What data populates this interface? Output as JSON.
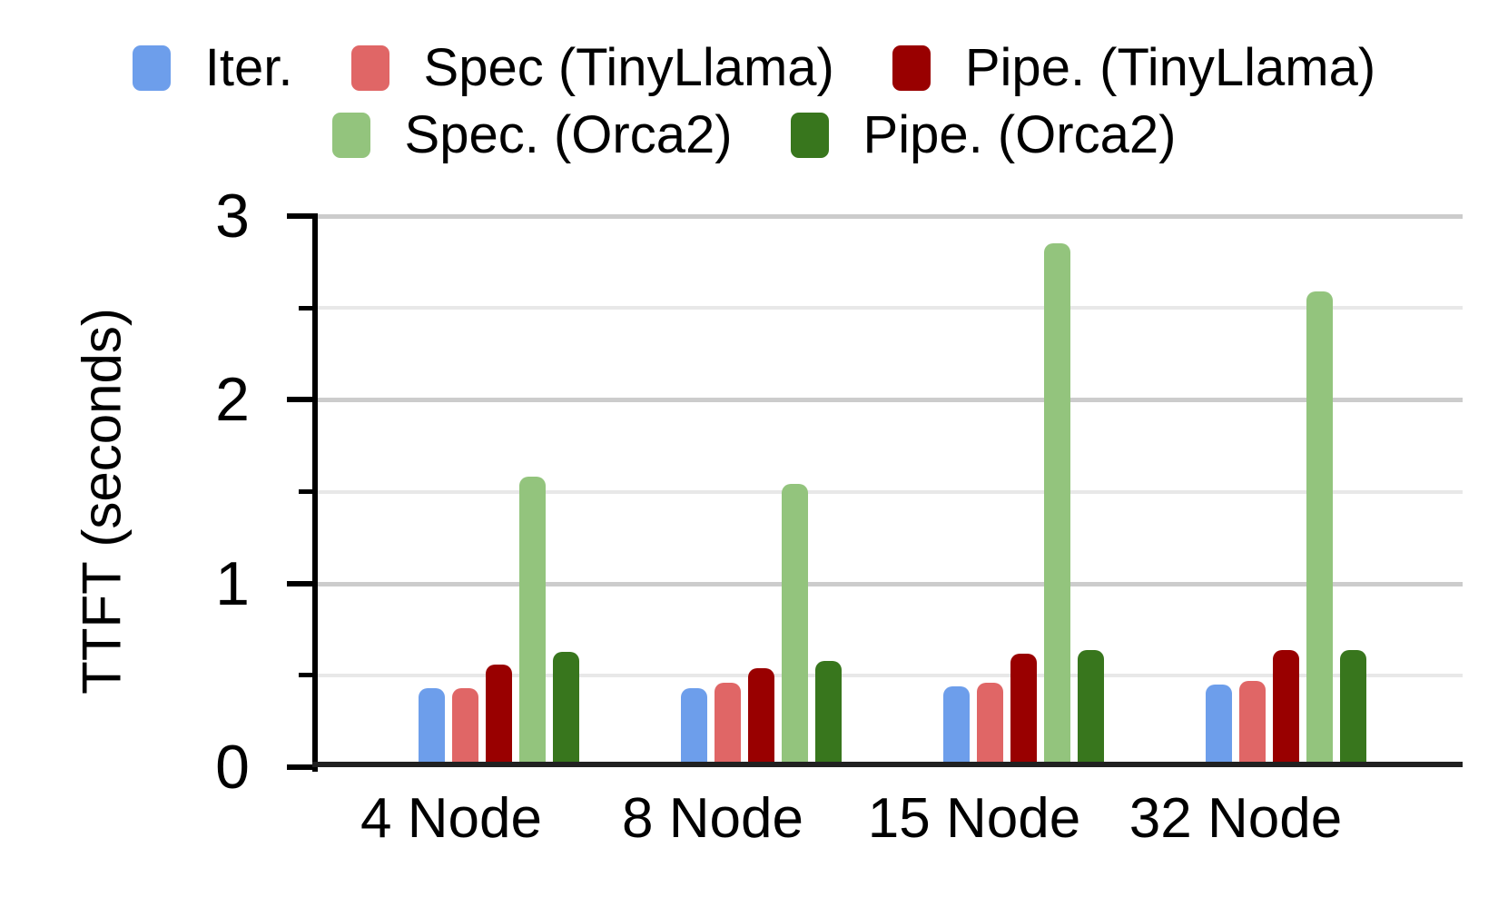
{
  "chart_data": {
    "type": "bar",
    "categories": [
      "4 Node",
      "8 Node",
      "15 Node",
      "32 Node"
    ],
    "series": [
      {
        "name": "Iter.",
        "color": "#6D9EEB",
        "values": [
          0.43,
          0.43,
          0.44,
          0.45
        ]
      },
      {
        "name": "Spec (TinyLlama)",
        "color": "#E06666",
        "values": [
          0.43,
          0.46,
          0.46,
          0.47
        ]
      },
      {
        "name": "Pipe. (TinyLlama)",
        "color": "#990000",
        "values": [
          0.56,
          0.54,
          0.62,
          0.64
        ]
      },
      {
        "name": "Spec. (Orca2)",
        "color": "#93C47D",
        "values": [
          1.58,
          1.54,
          2.85,
          2.59
        ]
      },
      {
        "name": "Pipe. (Orca2)",
        "color": "#38761D",
        "values": [
          0.63,
          0.58,
          0.64,
          0.64
        ]
      }
    ],
    "ylabel": "TTFT (seconds)",
    "ylim": [
      0,
      3
    ],
    "yticks": [
      0,
      1,
      2,
      3
    ],
    "yticks_minor": [
      0.5,
      1.5,
      2.5
    ],
    "grid": true,
    "legend_position": "top",
    "legend_rows": [
      [
        "Iter.",
        "Spec (TinyLlama)",
        "Pipe. (TinyLlama)"
      ],
      [
        "Spec. (Orca2)",
        "Pipe. (Orca2)"
      ]
    ]
  },
  "colors": {
    "background": "#FFFFFF",
    "text": "#000000",
    "axis": "#000000",
    "baseline": "#212121",
    "grid_major": "#CCCCCC",
    "grid_minor": "#E8E8E8"
  }
}
